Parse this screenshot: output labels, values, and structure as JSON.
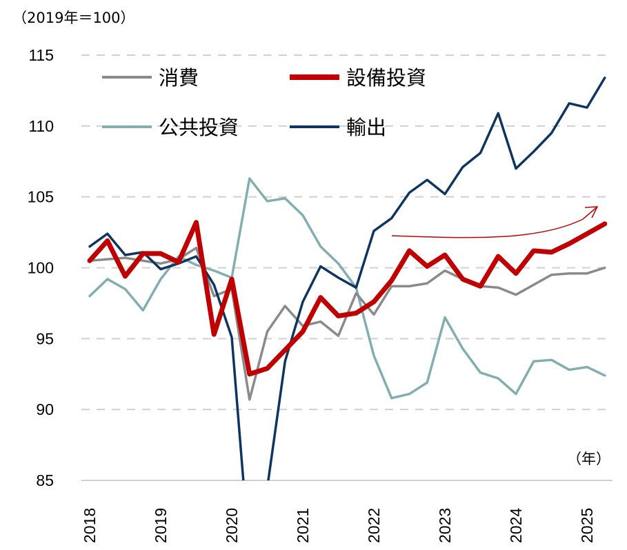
{
  "chart_data": {
    "type": "line",
    "unit_label": "（2019年＝100）",
    "x_unit_label": "（年）",
    "x": [
      "2018Q1",
      "2018Q2",
      "2018Q3",
      "2018Q4",
      "2019Q1",
      "2019Q2",
      "2019Q3",
      "2019Q4",
      "2020Q1",
      "2020Q2",
      "2020Q3",
      "2020Q4",
      "2021Q1",
      "2021Q2",
      "2021Q3",
      "2021Q4",
      "2022Q1",
      "2022Q2",
      "2022Q3",
      "2022Q4",
      "2023Q1",
      "2023Q2",
      "2023Q3",
      "2023Q4",
      "2024Q1",
      "2024Q2",
      "2024Q3",
      "2024Q4",
      "2025Q1",
      "2025Q2"
    ],
    "x_tick_labels": [
      "2018",
      "2019",
      "2020",
      "2021",
      "2022",
      "2023",
      "2024",
      "2025"
    ],
    "y_tick_labels": [
      "85",
      "90",
      "95",
      "100",
      "105",
      "110",
      "115"
    ],
    "ylim": [
      85,
      115
    ],
    "grid": "horizontal dashed",
    "legend": "top-left",
    "series": [
      {
        "name": "消費",
        "color": "#8a8a8a",
        "values": [
          100.5,
          100.6,
          100.7,
          100.5,
          100.3,
          100.6,
          101.4,
          98.0,
          98.5,
          90.7,
          95.5,
          97.3,
          95.9,
          96.2,
          95.2,
          98.2,
          96.7,
          98.7,
          98.7,
          98.9,
          99.8,
          99.2,
          98.7,
          98.6,
          98.1,
          98.8,
          99.5,
          99.6,
          99.6,
          100.0
        ]
      },
      {
        "name": "設備投資",
        "color": "#c00000",
        "values": [
          100.5,
          101.9,
          99.4,
          101.0,
          101.0,
          100.4,
          103.2,
          95.3,
          99.2,
          92.5,
          92.9,
          94.2,
          95.5,
          97.9,
          96.6,
          96.8,
          97.6,
          99.1,
          101.2,
          100.1,
          100.9,
          99.2,
          98.7,
          100.8,
          99.6,
          101.2,
          101.1,
          101.7,
          102.4,
          103.1
        ]
      },
      {
        "name": "公共投資",
        "color": "#82aeb1",
        "values": [
          98.0,
          99.2,
          98.5,
          97.0,
          99.2,
          100.8,
          100.2,
          99.8,
          99.3,
          106.3,
          104.7,
          104.9,
          103.7,
          101.5,
          100.3,
          98.6,
          93.8,
          90.8,
          91.1,
          91.9,
          96.5,
          94.3,
          92.6,
          92.2,
          91.1,
          93.4,
          93.5,
          92.8,
          93.0,
          92.4
        ]
      },
      {
        "name": "輸出",
        "color": "#0e3560",
        "values": [
          101.5,
          102.4,
          100.9,
          101.1,
          99.9,
          100.3,
          100.8,
          98.8,
          95.1,
          79.6,
          84.5,
          93.4,
          97.6,
          100.1,
          99.3,
          98.6,
          102.6,
          103.5,
          105.3,
          106.2,
          105.2,
          107.1,
          108.1,
          110.9,
          107.0,
          108.2,
          109.5,
          111.6,
          111.3,
          113.4
        ]
      }
    ],
    "annotation": {
      "type": "arrow",
      "series": "設備投資",
      "color": "#c00000"
    }
  }
}
